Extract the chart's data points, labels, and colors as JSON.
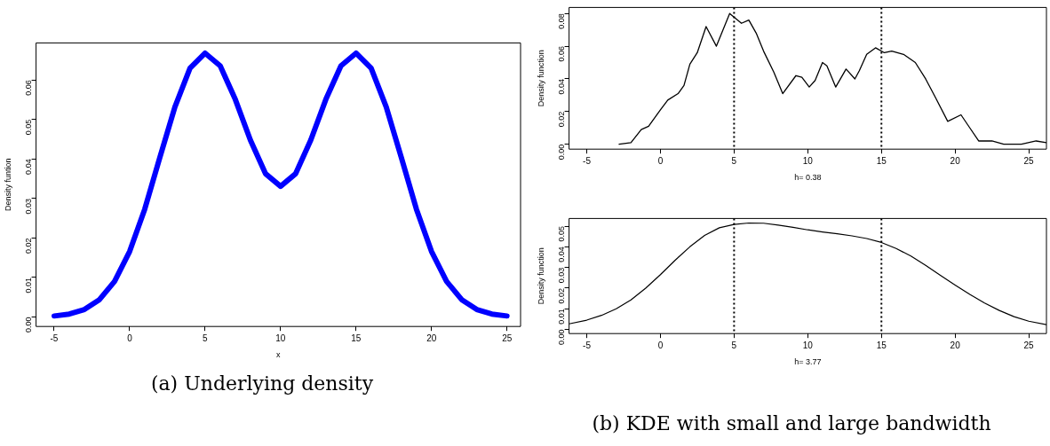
{
  "chart_data": [
    {
      "type": "line",
      "xlabel": "x",
      "ylabel": "Density funtion",
      "marker": "none",
      "xlim": [
        -6.2,
        25.9
      ],
      "ylim": [
        -0.0024,
        0.0694
      ],
      "xticks": [
        -5,
        0,
        5,
        10,
        15,
        20,
        25
      ],
      "yticks": [
        {
          "value": 0,
          "label": "0.00"
        },
        {
          "value": 0.01,
          "label": "0.01"
        },
        {
          "value": 0.02,
          "label": "0.02"
        },
        {
          "value": 0.03,
          "label": "0.03"
        },
        {
          "value": 0.04,
          "label": "0.04"
        },
        {
          "value": 0.05,
          "label": "0.05"
        },
        {
          "value": 0.06,
          "label": "0.06"
        }
      ],
      "annotations": [
        "(a) Underlying density"
      ],
      "series": [
        {
          "color": "#0000ff",
          "x": [
            -5,
            -4,
            -3,
            -2,
            -1,
            0,
            1,
            2,
            3,
            4,
            5,
            6,
            7,
            8,
            9,
            10,
            11,
            12,
            13,
            14,
            15,
            16,
            17,
            18,
            19,
            20,
            21,
            22,
            23,
            24,
            25
          ],
          "values": [
            0.00026,
            0.00074,
            0.0019,
            0.0044,
            0.009,
            0.0166,
            0.0273,
            0.0404,
            0.0532,
            0.063,
            0.0668,
            0.0636,
            0.0551,
            0.0448,
            0.0363,
            0.0331,
            0.0363,
            0.0448,
            0.0551,
            0.0636,
            0.0668,
            0.063,
            0.0532,
            0.0404,
            0.0273,
            0.0166,
            0.009,
            0.0044,
            0.0019,
            0.00074,
            0.00026
          ]
        }
      ]
    },
    {
      "type": "line",
      "xlabel": "h= 0.38",
      "ylabel": "Density function",
      "marker": "none",
      "xlim": [
        -6.2,
        26.2
      ],
      "ylim": [
        -0.003,
        0.0837
      ],
      "xticks": [
        -5,
        0,
        5,
        10,
        15,
        20,
        25
      ],
      "yticks": [
        {
          "value": 0,
          "label": "0.00"
        },
        {
          "value": 0.02,
          "label": "0.02"
        },
        {
          "value": 0.04,
          "label": "0.04"
        },
        {
          "value": 0.06,
          "label": "0.06"
        },
        {
          "value": 0.08,
          "label": "0.08"
        }
      ],
      "ref_lines": [
        {
          "axis": "x",
          "value": 5,
          "line_style": "dotted",
          "color": "#000000"
        },
        {
          "axis": "x",
          "value": 15,
          "line_style": "dotted",
          "color": "#000000"
        }
      ],
      "series": [
        {
          "color": "#000000",
          "x": [
            -2.8,
            -2,
            -1.3,
            -0.8,
            0,
            0.5,
            1.2,
            1.6,
            2,
            2.5,
            3.1,
            3.8,
            4.7,
            5.5,
            6,
            6.5,
            7,
            7.7,
            8.3,
            9.2,
            9.6,
            10.1,
            10.5,
            11,
            11.3,
            11.9,
            12.6,
            13.2,
            13.5,
            14,
            14.6,
            15.2,
            15.7,
            16.5,
            17.3,
            18,
            18.7,
            19.5,
            20.4,
            21,
            21.6,
            22.5,
            23.3,
            24.5,
            25.5,
            26.2
          ],
          "values": [
            0,
            0.001,
            0.009,
            0.011,
            0.021,
            0.027,
            0.031,
            0.036,
            0.049,
            0.056,
            0.072,
            0.06,
            0.08,
            0.074,
            0.076,
            0.068,
            0.057,
            0.044,
            0.031,
            0.042,
            0.041,
            0.035,
            0.039,
            0.05,
            0.048,
            0.035,
            0.046,
            0.04,
            0.045,
            0.055,
            0.059,
            0.056,
            0.057,
            0.055,
            0.05,
            0.04,
            0.028,
            0.014,
            0.018,
            0.01,
            0.002,
            0.002,
            0,
            0,
            0.002,
            0.001
          ]
        }
      ]
    },
    {
      "type": "line",
      "xlabel": "h= 3.77",
      "ylabel": "Density function",
      "marker": "none",
      "xlim": [
        -6.2,
        26.2
      ],
      "ylim": [
        -0.002,
        0.0537
      ],
      "xticks": [
        -5,
        0,
        5,
        10,
        15,
        20,
        25
      ],
      "yticks": [
        {
          "value": 0,
          "label": "0.00"
        },
        {
          "value": 0.01,
          "label": "0.01"
        },
        {
          "value": 0.02,
          "label": "0.02"
        },
        {
          "value": 0.03,
          "label": "0.03"
        },
        {
          "value": 0.04,
          "label": "0.04"
        },
        {
          "value": 0.05,
          "label": "0.05"
        }
      ],
      "ref_lines": [
        {
          "axis": "x",
          "value": 5,
          "line_style": "dotted",
          "color": "#000000"
        },
        {
          "axis": "x",
          "value": 15,
          "line_style": "dotted",
          "color": "#000000"
        }
      ],
      "annotations": [
        "(b) KDE with small and large bandwidth"
      ],
      "series": [
        {
          "color": "#000000",
          "x": [
            -6.2,
            -5,
            -4,
            -3,
            -2,
            -1,
            0,
            1,
            2,
            3,
            4,
            5,
            6,
            7,
            8,
            9,
            10,
            11,
            12,
            13,
            14,
            15,
            16,
            17,
            18,
            19,
            20,
            21,
            22,
            23,
            24,
            25,
            26.2
          ],
          "values": [
            0.0027,
            0.0045,
            0.0068,
            0.01,
            0.0143,
            0.02,
            0.0265,
            0.0335,
            0.04,
            0.0455,
            0.0492,
            0.0508,
            0.0515,
            0.0514,
            0.0505,
            0.0494,
            0.0482,
            0.0472,
            0.0463,
            0.0453,
            0.044,
            0.0421,
            0.0392,
            0.0355,
            0.031,
            0.0262,
            0.0215,
            0.017,
            0.0128,
            0.0092,
            0.0062,
            0.004,
            0.0023
          ]
        }
      ]
    }
  ]
}
